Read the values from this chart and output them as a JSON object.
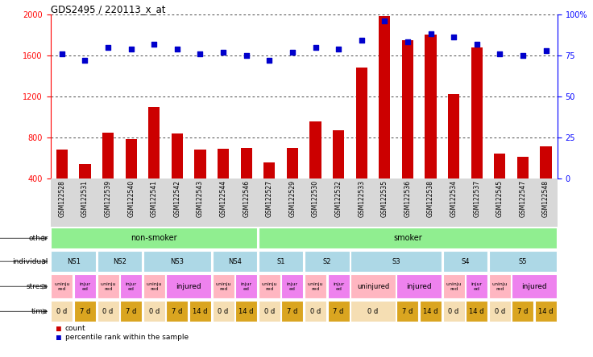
{
  "title": "GDS2495 / 220113_x_at",
  "samples": [
    "GSM122528",
    "GSM122531",
    "GSM122539",
    "GSM122540",
    "GSM122541",
    "GSM122542",
    "GSM122543",
    "GSM122544",
    "GSM122546",
    "GSM122527",
    "GSM122529",
    "GSM122530",
    "GSM122532",
    "GSM122533",
    "GSM122535",
    "GSM122536",
    "GSM122538",
    "GSM122534",
    "GSM122537",
    "GSM122545",
    "GSM122547",
    "GSM122548"
  ],
  "counts": [
    680,
    540,
    850,
    780,
    1100,
    840,
    680,
    690,
    700,
    560,
    700,
    960,
    870,
    1480,
    1980,
    1750,
    1800,
    1220,
    1680,
    640,
    610,
    710
  ],
  "percentiles": [
    76,
    72,
    80,
    79,
    82,
    79,
    76,
    77,
    75,
    72,
    77,
    80,
    79,
    84,
    96,
    83,
    88,
    86,
    82,
    76,
    75,
    78
  ],
  "ylim_left": [
    400,
    2000
  ],
  "ylim_right": [
    0,
    100
  ],
  "yticks_left": [
    400,
    800,
    1200,
    1600,
    2000
  ],
  "yticks_right": [
    0,
    25,
    50,
    75,
    100
  ],
  "bar_color": "#cc0000",
  "dot_color": "#0000cc",
  "other_row": [
    {
      "label": "non-smoker",
      "start": 0,
      "end": 9,
      "color": "#90ee90"
    },
    {
      "label": "smoker",
      "start": 9,
      "end": 22,
      "color": "#90ee90"
    }
  ],
  "individual_row": [
    {
      "label": "NS1",
      "start": 0,
      "end": 2,
      "color": "#add8e6"
    },
    {
      "label": "NS2",
      "start": 2,
      "end": 4,
      "color": "#add8e6"
    },
    {
      "label": "NS3",
      "start": 4,
      "end": 7,
      "color": "#add8e6"
    },
    {
      "label": "NS4",
      "start": 7,
      "end": 9,
      "color": "#add8e6"
    },
    {
      "label": "S1",
      "start": 9,
      "end": 11,
      "color": "#add8e6"
    },
    {
      "label": "S2",
      "start": 11,
      "end": 13,
      "color": "#add8e6"
    },
    {
      "label": "S3",
      "start": 13,
      "end": 17,
      "color": "#add8e6"
    },
    {
      "label": "S4",
      "start": 17,
      "end": 19,
      "color": "#add8e6"
    },
    {
      "label": "S5",
      "start": 19,
      "end": 22,
      "color": "#add8e6"
    }
  ],
  "stress_row": [
    {
      "label": "uninjured",
      "start": 0,
      "end": 1,
      "color": "#ffb6c1"
    },
    {
      "label": "injured",
      "start": 1,
      "end": 2,
      "color": "#ee82ee"
    },
    {
      "label": "uninjured",
      "start": 2,
      "end": 3,
      "color": "#ffb6c1"
    },
    {
      "label": "injured",
      "start": 3,
      "end": 4,
      "color": "#ee82ee"
    },
    {
      "label": "uninjured",
      "start": 4,
      "end": 5,
      "color": "#ffb6c1"
    },
    {
      "label": "injured",
      "start": 5,
      "end": 7,
      "color": "#ee82ee"
    },
    {
      "label": "uninjured",
      "start": 7,
      "end": 8,
      "color": "#ffb6c1"
    },
    {
      "label": "injured",
      "start": 8,
      "end": 9,
      "color": "#ee82ee"
    },
    {
      "label": "uninjured",
      "start": 9,
      "end": 10,
      "color": "#ffb6c1"
    },
    {
      "label": "injured",
      "start": 10,
      "end": 11,
      "color": "#ee82ee"
    },
    {
      "label": "uninjured",
      "start": 11,
      "end": 12,
      "color": "#ffb6c1"
    },
    {
      "label": "injured",
      "start": 12,
      "end": 13,
      "color": "#ee82ee"
    },
    {
      "label": "uninjured",
      "start": 13,
      "end": 15,
      "color": "#ffb6c1"
    },
    {
      "label": "injured",
      "start": 15,
      "end": 17,
      "color": "#ee82ee"
    },
    {
      "label": "uninjured",
      "start": 17,
      "end": 18,
      "color": "#ffb6c1"
    },
    {
      "label": "injured",
      "start": 18,
      "end": 19,
      "color": "#ee82ee"
    },
    {
      "label": "uninjured",
      "start": 19,
      "end": 20,
      "color": "#ffb6c1"
    },
    {
      "label": "injured",
      "start": 20,
      "end": 22,
      "color": "#ee82ee"
    }
  ],
  "time_row": [
    {
      "label": "0 d",
      "start": 0,
      "end": 1,
      "color": "#f5deb3"
    },
    {
      "label": "7 d",
      "start": 1,
      "end": 2,
      "color": "#daa520"
    },
    {
      "label": "0 d",
      "start": 2,
      "end": 3,
      "color": "#f5deb3"
    },
    {
      "label": "7 d",
      "start": 3,
      "end": 4,
      "color": "#daa520"
    },
    {
      "label": "0 d",
      "start": 4,
      "end": 5,
      "color": "#f5deb3"
    },
    {
      "label": "7 d",
      "start": 5,
      "end": 6,
      "color": "#daa520"
    },
    {
      "label": "14 d",
      "start": 6,
      "end": 7,
      "color": "#daa520"
    },
    {
      "label": "0 d",
      "start": 7,
      "end": 8,
      "color": "#f5deb3"
    },
    {
      "label": "14 d",
      "start": 8,
      "end": 9,
      "color": "#daa520"
    },
    {
      "label": "0 d",
      "start": 9,
      "end": 10,
      "color": "#f5deb3"
    },
    {
      "label": "7 d",
      "start": 10,
      "end": 11,
      "color": "#daa520"
    },
    {
      "label": "0 d",
      "start": 11,
      "end": 12,
      "color": "#f5deb3"
    },
    {
      "label": "7 d",
      "start": 12,
      "end": 13,
      "color": "#daa520"
    },
    {
      "label": "0 d",
      "start": 13,
      "end": 15,
      "color": "#f5deb3"
    },
    {
      "label": "7 d",
      "start": 15,
      "end": 16,
      "color": "#daa520"
    },
    {
      "label": "14 d",
      "start": 16,
      "end": 17,
      "color": "#daa520"
    },
    {
      "label": "0 d",
      "start": 17,
      "end": 18,
      "color": "#f5deb3"
    },
    {
      "label": "14 d",
      "start": 18,
      "end": 19,
      "color": "#daa520"
    },
    {
      "label": "0 d",
      "start": 19,
      "end": 20,
      "color": "#f5deb3"
    },
    {
      "label": "7 d",
      "start": 20,
      "end": 21,
      "color": "#daa520"
    },
    {
      "label": "14 d",
      "start": 21,
      "end": 22,
      "color": "#daa520"
    }
  ]
}
